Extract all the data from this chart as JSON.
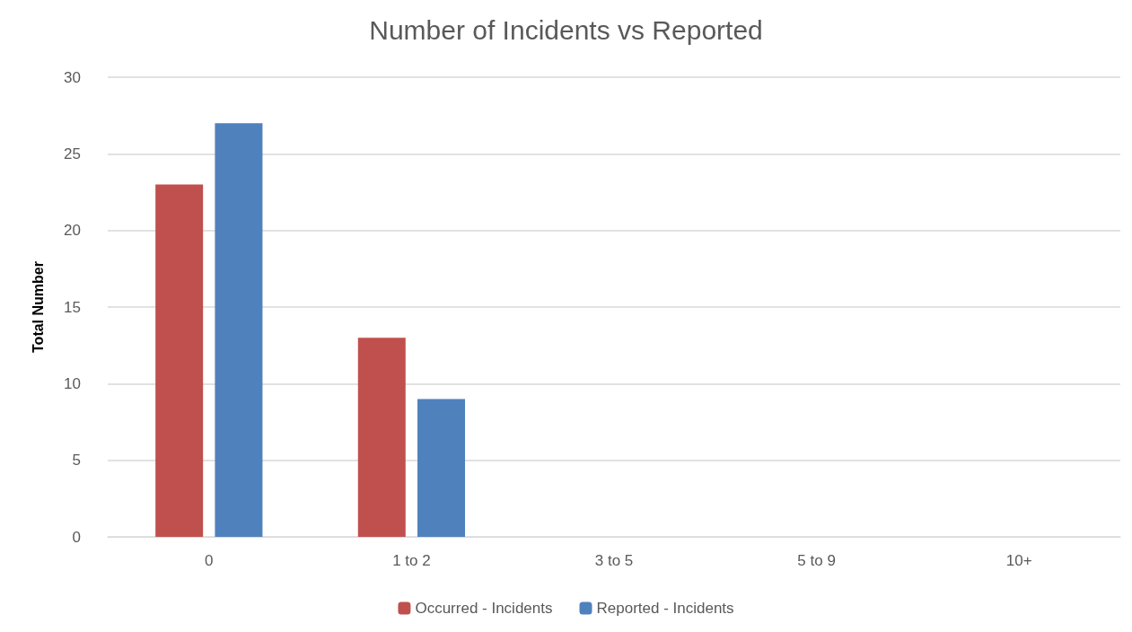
{
  "chart_data": {
    "type": "bar",
    "title": "Number of Incidents vs Reported",
    "ylabel": "Total Number",
    "categories": [
      "0",
      "1 to 2",
      "3 to 5",
      "5 to 9",
      "10+"
    ],
    "series": [
      {
        "name": "Occurred - Incidents",
        "color": "#c0504d",
        "values": [
          23,
          13,
          0,
          0,
          0
        ]
      },
      {
        "name": "Reported - Incidents",
        "color": "#4f81bd",
        "values": [
          27,
          9,
          0,
          0,
          0
        ]
      }
    ],
    "ylim": [
      0,
      30
    ],
    "yticks": [
      0,
      5,
      10,
      15,
      20,
      25,
      30
    ],
    "grid": "y",
    "legend": "bottom"
  }
}
